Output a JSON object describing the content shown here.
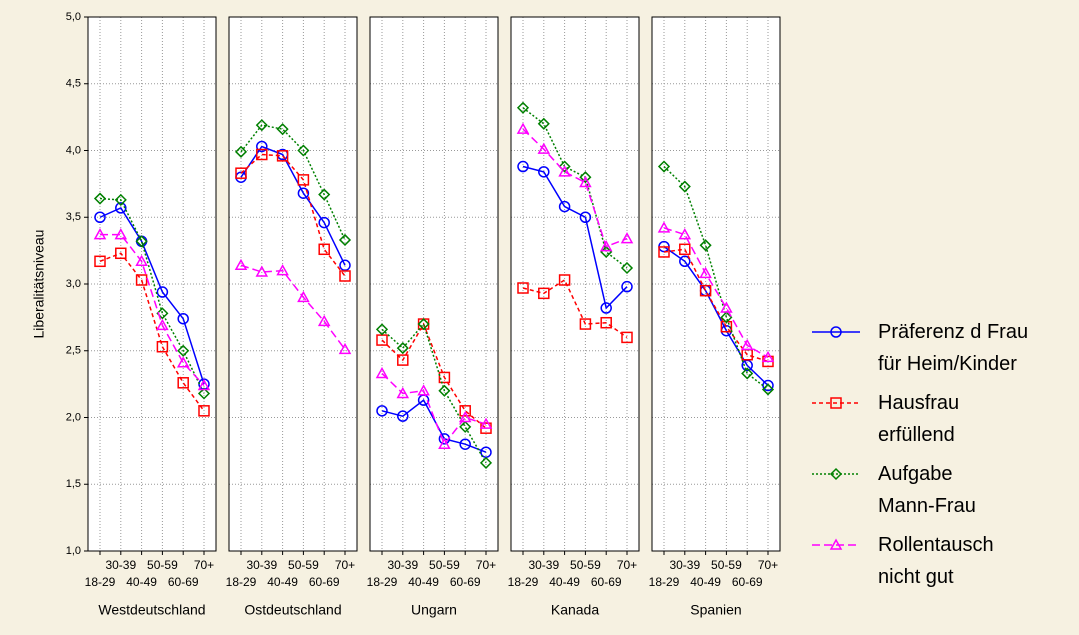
{
  "chart_data": {
    "type": "line",
    "ylabel": "Liberalitätsniveau",
    "categories": [
      "18-29",
      "30-39",
      "40-49",
      "50-59",
      "60-69",
      "70+"
    ],
    "panels": [
      "Westdeutschland",
      "Ostdeutschland",
      "Ungarn",
      "Kanada",
      "Spanien"
    ],
    "ylim": [
      1.0,
      5.0
    ],
    "yticks": [
      {
        "value": 1.0,
        "label": "1,0"
      },
      {
        "value": 1.5,
        "label": "1,5"
      },
      {
        "value": 2.0,
        "label": "2,0"
      },
      {
        "value": 2.5,
        "label": "2,5"
      },
      {
        "value": 3.0,
        "label": "3,0"
      },
      {
        "value": 3.5,
        "label": "3,5"
      },
      {
        "value": 4.0,
        "label": "4,0"
      },
      {
        "value": 4.5,
        "label": "4,5"
      },
      {
        "value": 5.0,
        "label": "5,0"
      }
    ],
    "grid": true,
    "series": [
      {
        "name": "Präferenz d Frau\nfür Heim/Kinder",
        "color": "#0000ff",
        "marker": "circle",
        "dash": "none",
        "values": [
          [
            3.5,
            3.57,
            3.32,
            2.94,
            2.74,
            2.25
          ],
          [
            3.8,
            4.03,
            3.97,
            3.68,
            3.46,
            3.14
          ],
          [
            2.05,
            2.01,
            2.13,
            1.84,
            1.8,
            1.74
          ],
          [
            3.88,
            3.84,
            3.58,
            3.5,
            2.82,
            2.98
          ],
          [
            3.28,
            3.17,
            2.95,
            2.65,
            2.39,
            2.24
          ]
        ]
      },
      {
        "name": "Hausfrau\nerfüllend",
        "color": "#ff0000",
        "marker": "square",
        "dash": "4 3",
        "values": [
          [
            3.17,
            3.23,
            3.03,
            2.53,
            2.26,
            2.05
          ],
          [
            3.83,
            3.97,
            3.96,
            3.78,
            3.26,
            3.06
          ],
          [
            2.58,
            2.43,
            2.7,
            2.3,
            2.05,
            1.92
          ],
          [
            2.97,
            2.93,
            3.03,
            2.7,
            2.71,
            2.6
          ],
          [
            3.24,
            3.26,
            2.95,
            2.68,
            2.47,
            2.42
          ]
        ]
      },
      {
        "name": "Aufgabe\nMann-Frau",
        "color": "#008000",
        "marker": "diamond",
        "dash": "2 2",
        "values": [
          [
            3.64,
            3.63,
            3.32,
            2.78,
            2.5,
            2.18
          ],
          [
            3.99,
            4.19,
            4.16,
            4.0,
            3.67,
            3.33
          ],
          [
            2.66,
            2.52,
            2.7,
            2.2,
            1.93,
            1.66
          ],
          [
            4.32,
            4.2,
            3.88,
            3.8,
            3.24,
            3.12
          ],
          [
            3.88,
            3.73,
            3.29,
            2.75,
            2.33,
            2.21
          ]
        ]
      },
      {
        "name": "Rollentausch\nnicht gut",
        "color": "#ff00ff",
        "marker": "triangle",
        "dash": "8 4",
        "values": [
          [
            3.37,
            3.37,
            3.17,
            2.69,
            2.41,
            2.24
          ],
          [
            3.14,
            3.09,
            3.1,
            2.9,
            2.72,
            2.51
          ],
          [
            2.33,
            2.18,
            2.2,
            1.8,
            2.0,
            1.95
          ],
          [
            4.16,
            4.01,
            3.84,
            3.76,
            3.28,
            3.34
          ],
          [
            3.42,
            3.37,
            3.08,
            2.82,
            2.54,
            2.45
          ]
        ]
      }
    ]
  }
}
